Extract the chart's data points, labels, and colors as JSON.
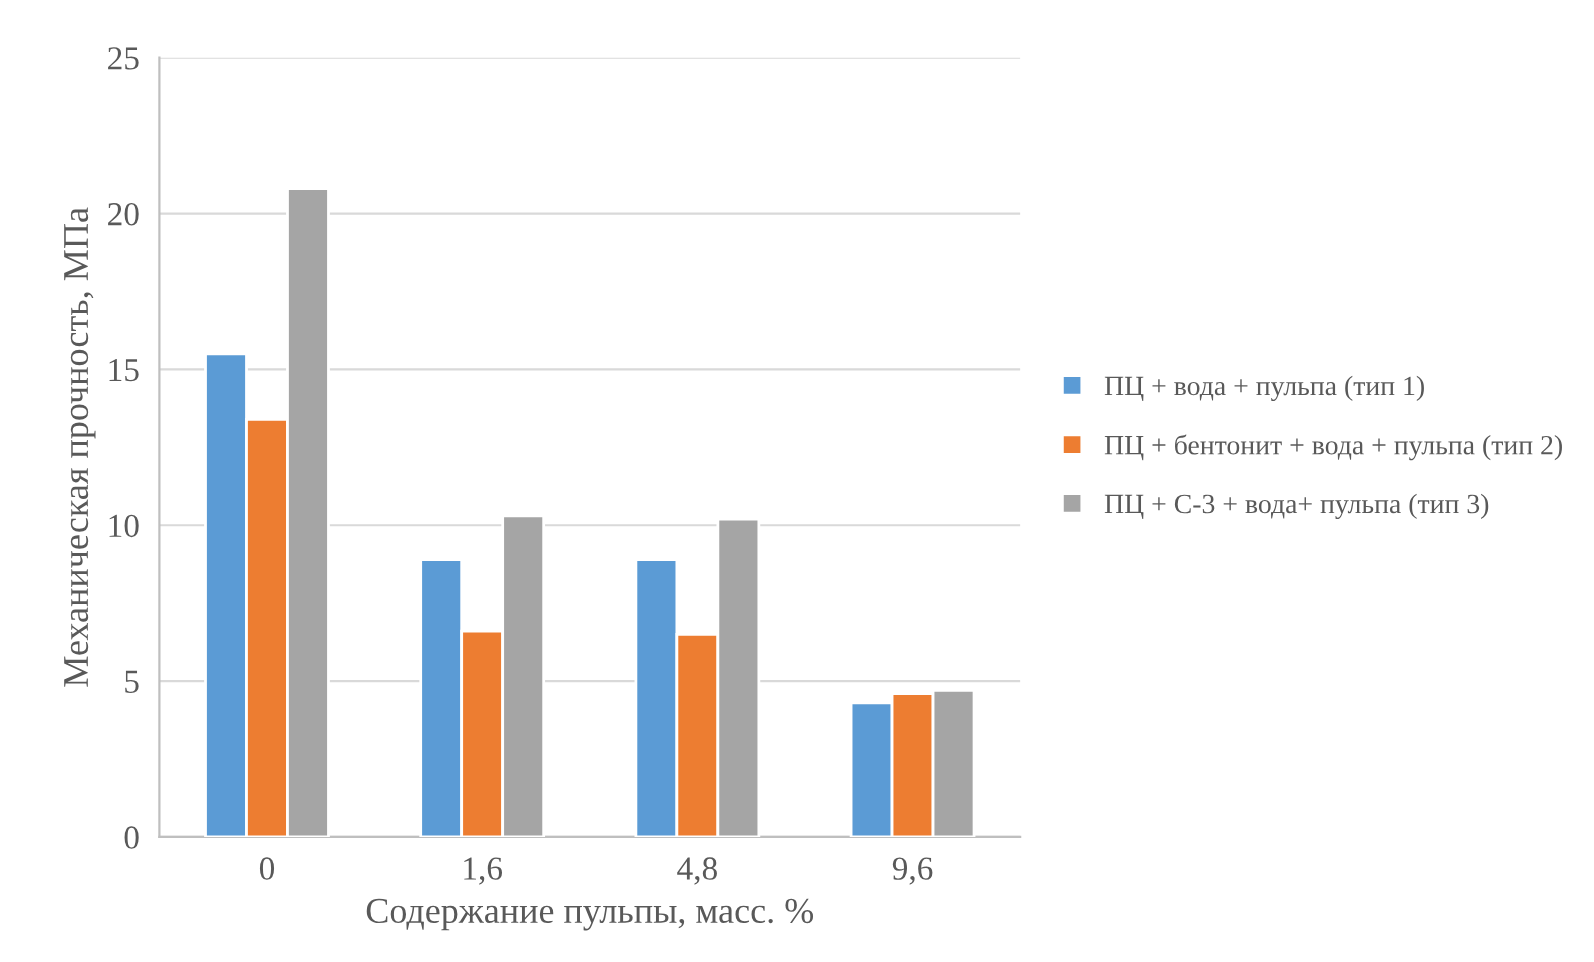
{
  "chart_data": {
    "type": "bar",
    "xlabel": "Содержание пульпы, масс. %",
    "ylabel": "Механическая прочность, МПа",
    "categories": [
      "0",
      "1,6",
      "4,8",
      "9,6"
    ],
    "series": [
      {
        "name": "ПЦ + вода + пульпа (тип 1)",
        "color": "#5b9bd5",
        "values": [
          15.5,
          8.9,
          8.9,
          4.3
        ]
      },
      {
        "name": "ПЦ + бентонит + вода + пульпа (тип 2)",
        "color": "#ed7d31",
        "values": [
          13.4,
          6.6,
          6.5,
          4.6
        ]
      },
      {
        "name": "ПЦ + С-3 + вода+ пульпа (тип 3)",
        "color": "#a5a5a5",
        "values": [
          20.8,
          10.3,
          10.2,
          4.7
        ]
      }
    ],
    "ylim": [
      0,
      25
    ],
    "yticks": [
      0,
      5,
      10,
      15,
      20,
      25
    ],
    "grid": "y",
    "legend": "right"
  }
}
